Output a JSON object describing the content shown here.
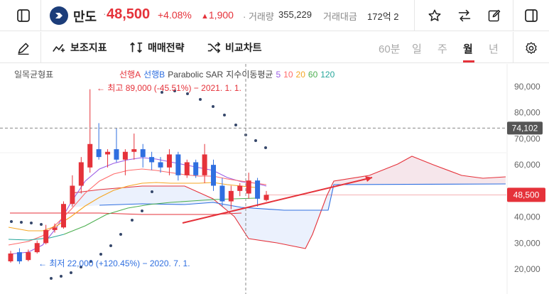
{
  "header": {
    "stock_name": "만도",
    "price_dot": "·",
    "price": "48,500",
    "change_pct": "+4.08%",
    "change_arrow": "▲",
    "change_abs": "1,900",
    "volume_label": "· 거래량",
    "volume_value": "355,229",
    "amount_label": "거래대금",
    "amount_value": "172억 2"
  },
  "toolbar": {
    "indicator_label": "보조지표",
    "strategy_label": "매매전략",
    "compare_label": "비교차트",
    "periods": [
      "60분",
      "일",
      "주",
      "월",
      "년"
    ],
    "active_period": "월"
  },
  "legend": {
    "main": "일목균형표",
    "span_a": "선행A",
    "span_b": "선행B",
    "sar": "Parabolic SAR",
    "ma_label": "지수이동평균",
    "ma_5": "5",
    "ma_10": "10",
    "ma_20": "20",
    "ma_60": "60",
    "ma_120": "120"
  },
  "colors": {
    "up": "#e5323a",
    "down": "#2f6fe0",
    "ma5": "#9b5de5",
    "ma10": "#ff6b6b",
    "ma20": "#f5a623",
    "ma60": "#4caf50",
    "ma120": "#26a69a"
  },
  "chart_data": {
    "type": "candlestick",
    "ylim": [
      15000,
      97000
    ],
    "y_ticks": [
      20000,
      30000,
      40000,
      50000,
      60000,
      70000,
      80000,
      90000
    ],
    "y_tick_labels": [
      "20,000",
      "30,000",
      "40,000",
      "50,000",
      "60,000",
      "70,000",
      "80,000",
      "90,000"
    ],
    "crosshair_value": 74102,
    "crosshair_label": "74,102",
    "current_price": 48500,
    "current_price_label": "48,500",
    "high_annotation": "최고 89,000 (-45.51%) − 2021. 1. 1.",
    "low_annotation": "최저 22,000 (+120.45%) − 2020. 7. 1.",
    "candles": [
      {
        "o": 23000,
        "h": 27000,
        "l": 22500,
        "c": 26000
      },
      {
        "o": 26500,
        "h": 28000,
        "l": 22000,
        "c": 23000
      },
      {
        "o": 23500,
        "h": 27500,
        "l": 23000,
        "c": 26500
      },
      {
        "o": 26500,
        "h": 31000,
        "l": 26000,
        "c": 30000
      },
      {
        "o": 30000,
        "h": 37000,
        "l": 29500,
        "c": 35000
      },
      {
        "o": 35000,
        "h": 37500,
        "l": 34000,
        "c": 36000
      },
      {
        "o": 36000,
        "h": 46000,
        "l": 35500,
        "c": 45000
      },
      {
        "o": 45000,
        "h": 56000,
        "l": 44000,
        "c": 52000
      },
      {
        "o": 52000,
        "h": 63000,
        "l": 49000,
        "c": 61000
      },
      {
        "o": 59000,
        "h": 89000,
        "l": 57000,
        "c": 68000
      },
      {
        "o": 66000,
        "h": 76000,
        "l": 62000,
        "c": 63000
      },
      {
        "o": 64000,
        "h": 66000,
        "l": 59000,
        "c": 65000
      },
      {
        "o": 66000,
        "h": 74000,
        "l": 61000,
        "c": 62000
      },
      {
        "o": 62000,
        "h": 66000,
        "l": 56000,
        "c": 65000
      },
      {
        "o": 65000,
        "h": 72000,
        "l": 62000,
        "c": 66000
      },
      {
        "o": 66000,
        "h": 68000,
        "l": 59000,
        "c": 63000
      },
      {
        "o": 63000,
        "h": 65000,
        "l": 58000,
        "c": 61000
      },
      {
        "o": 61000,
        "h": 63000,
        "l": 57000,
        "c": 59000
      },
      {
        "o": 59000,
        "h": 66000,
        "l": 56000,
        "c": 64000
      },
      {
        "o": 64000,
        "h": 65000,
        "l": 54000,
        "c": 56000
      },
      {
        "o": 56000,
        "h": 62000,
        "l": 55000,
        "c": 61000
      },
      {
        "o": 61000,
        "h": 62000,
        "l": 55000,
        "c": 56000
      },
      {
        "o": 56000,
        "h": 68000,
        "l": 53000,
        "c": 64000
      },
      {
        "o": 60000,
        "h": 62000,
        "l": 50000,
        "c": 52000
      },
      {
        "o": 52000,
        "h": 55000,
        "l": 44000,
        "c": 46000
      },
      {
        "o": 46000,
        "h": 52000,
        "l": 43000,
        "c": 50000
      },
      {
        "o": 50000,
        "h": 53000,
        "l": 48000,
        "c": 52000
      },
      {
        "o": 49000,
        "h": 57000,
        "l": 47000,
        "c": 54000
      },
      {
        "o": 54000,
        "h": 55000,
        "l": 44000,
        "c": 47000
      },
      {
        "o": 46500,
        "h": 50000,
        "l": 46000,
        "c": 48500
      }
    ]
  }
}
